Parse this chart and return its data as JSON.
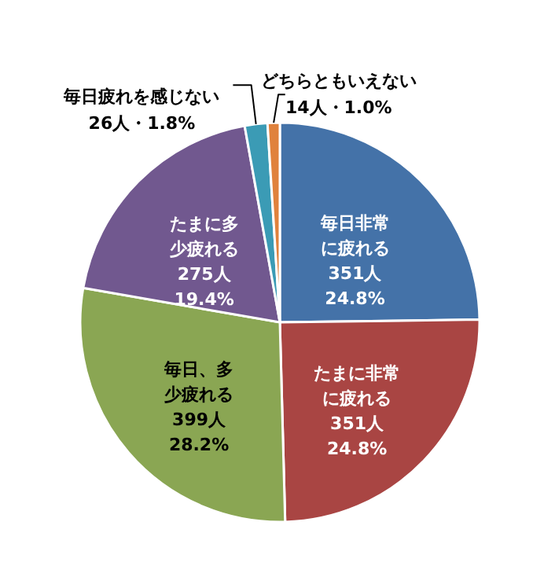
{
  "chart_data": {
    "type": "pie",
    "categories": [
      "毎日非常に疲れる",
      "たまに非常に疲れる",
      "毎日、多少疲れる",
      "たまに多少疲れる",
      "毎日疲れを感じない",
      "どちらともいえない"
    ],
    "values": [
      351,
      351,
      399,
      275,
      26,
      14
    ],
    "value_labels": [
      "351人\n24.8%",
      "351人\n24.8%",
      "399人\n28.2%",
      "275人\n19.4%",
      "26人・1.8%",
      "14人・1.0%"
    ],
    "colors": [
      "#4472a8",
      "#a94543",
      "#8aa653",
      "#71588f",
      "#3b9bb5",
      "#e0823d"
    ]
  }
}
